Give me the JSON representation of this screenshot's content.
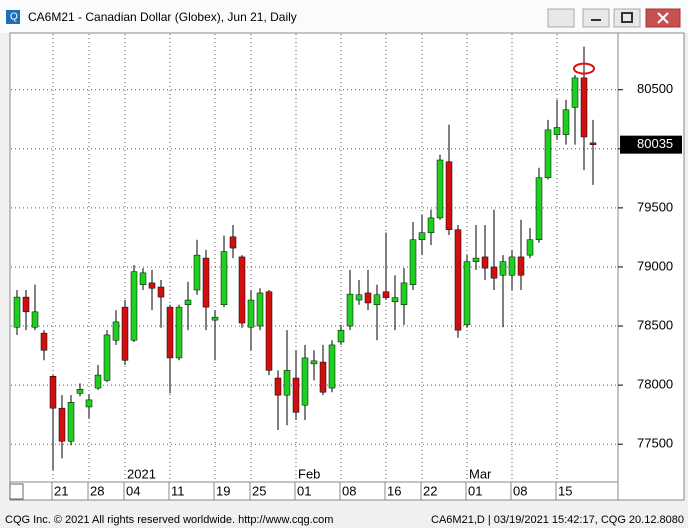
{
  "chart_data": {
    "type": "candlestick",
    "title": "CA6M21 - Canadian Dollar (Globex), Jun 21, Daily",
    "categories": [
      null,
      null,
      null,
      null,
      "21",
      null,
      null,
      null,
      "28",
      null,
      null,
      null,
      "04",
      null,
      null,
      null,
      null,
      "11",
      null,
      null,
      null,
      null,
      "19",
      null,
      null,
      null,
      "25",
      null,
      null,
      null,
      null,
      "01",
      null,
      null,
      null,
      null,
      "08",
      null,
      null,
      null,
      null,
      "16",
      null,
      null,
      null,
      "22",
      null,
      null,
      null,
      null,
      "01",
      null,
      null,
      null,
      null,
      "08",
      null,
      null,
      null,
      null,
      "15",
      null,
      null,
      null,
      null
    ],
    "open": [
      78490,
      78745,
      78490,
      78440,
      78075,
      77805,
      77525,
      77930,
      77815,
      77975,
      78040,
      78380,
      78660,
      78380,
      78850,
      78865,
      78830,
      78660,
      78230,
      78680,
      78805,
      79075,
      78550,
      78680,
      79255,
      79085,
      78490,
      78500,
      78790,
      78060,
      77915,
      78060,
      77830,
      78180,
      78195,
      77975,
      78365,
      78500,
      78720,
      78780,
      78680,
      78790,
      78705,
      78680,
      78850,
      79230,
      79290,
      79415,
      79890,
      79315,
      78510,
      79045,
      79085,
      79000,
      78930,
      78930,
      79085,
      79100,
      79230,
      79755,
      80120,
      80120,
      80350,
      80600,
      80050
    ],
    "high": [
      78805,
      78805,
      78850,
      78465,
      78085,
      77915,
      77915,
      78015,
      77925,
      78170,
      78465,
      78635,
      78720,
      79015,
      78990,
      78975,
      78890,
      78680,
      78680,
      78875,
      79230,
      79145,
      78635,
      79265,
      79355,
      79100,
      78805,
      78820,
      78805,
      78125,
      78465,
      78295,
      78340,
      78295,
      78340,
      78380,
      78510,
      78975,
      78890,
      78975,
      78850,
      79290,
      78930,
      78990,
      79380,
      79440,
      79485,
      79950,
      80205,
      79355,
      79100,
      79355,
      79355,
      79485,
      79100,
      79145,
      79400,
      79330,
      79840,
      80245,
      80415,
      80415,
      80625,
      80865,
      80245
    ],
    "low": [
      78425,
      78465,
      78465,
      78210,
      77280,
      77380,
      77490,
      77905,
      77720,
      77960,
      78025,
      78340,
      78170,
      78365,
      78805,
      78635,
      78485,
      77930,
      78210,
      78465,
      78765,
      78465,
      78210,
      78660,
      79075,
      78485,
      78295,
      78465,
      78085,
      77620,
      77660,
      77705,
      77705,
      78040,
      77915,
      77940,
      78340,
      78465,
      78680,
      78635,
      78380,
      78720,
      78465,
      78510,
      78805,
      79100,
      79185,
      79400,
      79270,
      78400,
      78485,
      78975,
      78890,
      78805,
      78490,
      78805,
      78805,
      79075,
      79205,
      79740,
      80075,
      80035,
      80035,
      79820,
      79695
    ],
    "close": [
      78745,
      78620,
      78620,
      78295,
      77805,
      77525,
      77855,
      77965,
      77875,
      78085,
      78425,
      78535,
      78210,
      78960,
      78950,
      78820,
      78745,
      78230,
      78660,
      78720,
      79100,
      78660,
      78575,
      79130,
      79160,
      78525,
      78720,
      78780,
      78125,
      77915,
      78125,
      77770,
      78230,
      78205,
      77940,
      78340,
      78465,
      78770,
      78765,
      78695,
      78765,
      78740,
      78740,
      78865,
      79230,
      79290,
      79415,
      79905,
      79315,
      78465,
      79045,
      79075,
      78990,
      78905,
      79045,
      79085,
      78930,
      79230,
      79755,
      80160,
      80180,
      80330,
      80600,
      80100,
      80035
    ],
    "up_color": "#1fcf1f",
    "down_color": "#d01010",
    "month_markers": [
      {
        "text": "2021",
        "category_index": 12
      },
      {
        "text": "Feb",
        "category_index": 31
      },
      {
        "text": "Mar",
        "category_index": 50
      }
    ],
    "ylim": [
      77180,
      80980
    ],
    "yticks": [
      77500,
      78000,
      78500,
      79000,
      79500,
      80000,
      80500
    ],
    "grid": true
  },
  "footer": {
    "left": "CQG Inc. © 2021 All rights reserved worldwide. http://www.cqg.com",
    "right": "CA6M21,D | 03/19/2021 15:42:17, CQG 20.12.8080"
  }
}
